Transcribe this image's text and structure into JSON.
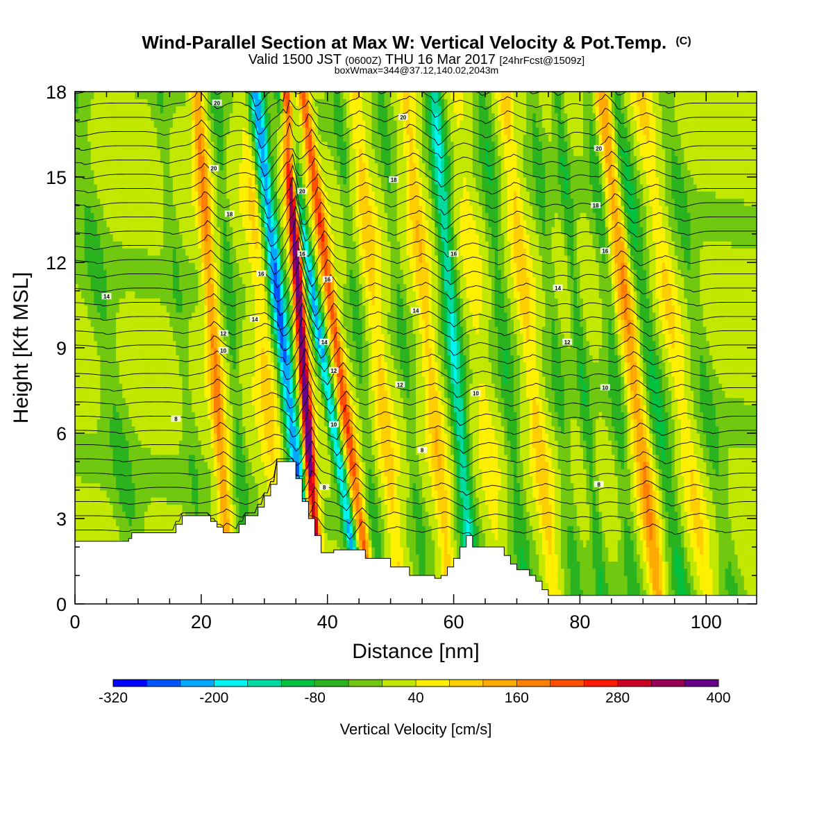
{
  "chart_data": {
    "type": "heatmap",
    "title": "Wind-Parallel Section at Max W: Vertical Velocity & Pot.Temp.",
    "title_suffix": "(C)",
    "subtitle_parts": [
      "Valid 1500 JST ",
      "(0600Z)",
      " THU 16 Mar 2017 ",
      "[24hrFcst@1509z]"
    ],
    "subtitle2": "boxWmax=344@37.12,140.02,2043m",
    "xlabel": "Distance [nm]",
    "ylabel": "Height [Kft MSL]",
    "xlim": [
      0,
      108
    ],
    "ylim": [
      0,
      18
    ],
    "x_ticks": [
      "0",
      "20",
      "40",
      "60",
      "80",
      "100"
    ],
    "x_tick_values": [
      0,
      20,
      40,
      60,
      80,
      100
    ],
    "y_ticks": [
      "0",
      "3",
      "6",
      "9",
      "12",
      "15",
      "18"
    ],
    "y_tick_values": [
      0,
      3,
      6,
      9,
      12,
      15,
      18
    ],
    "colorbar": {
      "label": "Vertical Velocity [cm/s]",
      "range": [
        -320,
        400
      ],
      "tick_labels": [
        "-320",
        "-200",
        "-80",
        "40",
        "160",
        "280",
        "400"
      ],
      "tick_values": [
        -320,
        -200,
        -80,
        40,
        160,
        280,
        400
      ],
      "colors": [
        "#0000ff",
        "#0055ff",
        "#00a8ff",
        "#00f5f0",
        "#00d9a0",
        "#00c040",
        "#2ab31e",
        "#70c810",
        "#c3e800",
        "#ffef00",
        "#ffce00",
        "#ffaa00",
        "#ff7f00",
        "#ff4f00",
        "#ff1a00",
        "#cc0022",
        "#990055",
        "#660088"
      ]
    },
    "terrain": {
      "x": [
        0,
        8.5,
        8.5,
        9,
        9,
        16,
        16,
        17,
        17,
        21.5,
        21.5,
        22.5,
        22.5,
        23.5,
        23.5,
        26,
        26,
        27,
        27,
        29,
        29,
        30,
        30,
        31,
        31,
        32,
        32,
        35,
        35,
        36,
        36,
        37,
        37,
        38,
        38,
        39,
        39,
        41,
        41,
        46,
        46,
        50,
        50,
        53,
        53,
        57,
        57,
        58,
        58,
        59,
        59,
        60,
        60,
        61,
        61,
        62,
        62,
        63,
        63,
        68,
        68,
        69,
        69,
        70,
        70,
        72,
        72,
        73,
        73,
        74,
        74,
        75,
        75,
        108
      ],
      "y": [
        2.2,
        2.2,
        2.3,
        2.3,
        2.5,
        2.5,
        2.8,
        2.8,
        3.1,
        3.1,
        2.9,
        2.9,
        2.7,
        2.7,
        2.5,
        2.5,
        2.8,
        2.8,
        3.1,
        3.1,
        3.4,
        3.4,
        3.8,
        3.8,
        4.2,
        4.2,
        5.0,
        5.0,
        4.4,
        4.4,
        3.6,
        3.6,
        3.0,
        3.0,
        2.4,
        2.4,
        1.8,
        1.8,
        1.9,
        1.9,
        1.6,
        1.6,
        1.3,
        1.3,
        1.0,
        1.0,
        0.9,
        0.9,
        1.0,
        1.0,
        1.3,
        1.3,
        1.6,
        1.6,
        2.0,
        2.0,
        2.4,
        2.4,
        2.0,
        2.0,
        1.7,
        1.7,
        1.4,
        1.4,
        1.2,
        1.2,
        1.0,
        1.0,
        0.8,
        0.8,
        0.5,
        0.5,
        0.3,
        0.3
      ]
    },
    "w_bands": [
      {
        "x": 5,
        "w": -60,
        "sigma": 2.0,
        "tilt": -0.6
      },
      {
        "x": 17,
        "w": -45,
        "sigma": 1.2,
        "tilt": -0.4
      },
      {
        "x": 22,
        "w": 150,
        "sigma": 1.0,
        "tilt": -0.3
      },
      {
        "x": 25,
        "w": -70,
        "sigma": 1.0,
        "tilt": -0.3
      },
      {
        "x": 30,
        "w": 70,
        "sigma": 1.5,
        "tilt": -0.3
      },
      {
        "x": 33,
        "w": -260,
        "sigma": 1.3,
        "tilt": -0.5
      },
      {
        "x": 36,
        "w": 390,
        "sigma": 0.85,
        "tilt": -0.3
      },
      {
        "x": 39,
        "w": -220,
        "sigma": 0.9,
        "tilt": -0.7
      },
      {
        "x": 41.5,
        "w": 210,
        "sigma": 0.9,
        "tilt": -0.6
      },
      {
        "x": 45,
        "w": -60,
        "sigma": 1.0,
        "tilt": -0.4
      },
      {
        "x": 48,
        "w": 80,
        "sigma": 1.2,
        "tilt": -0.4
      },
      {
        "x": 52,
        "w": -60,
        "sigma": 1.0,
        "tilt": -0.4
      },
      {
        "x": 56,
        "w": 90,
        "sigma": 1.2,
        "tilt": -0.4
      },
      {
        "x": 60,
        "w": -170,
        "sigma": 1.3,
        "tilt": -0.35
      },
      {
        "x": 64,
        "w": 40,
        "sigma": 1.2,
        "tilt": -0.4
      },
      {
        "x": 68,
        "w": -80,
        "sigma": 1.3,
        "tilt": -0.4
      },
      {
        "x": 72,
        "w": 80,
        "sigma": 1.2,
        "tilt": -0.45
      },
      {
        "x": 76,
        "w": -60,
        "sigma": 1.2,
        "tilt": -0.4
      },
      {
        "x": 80,
        "w": -80,
        "sigma": 1.0,
        "tilt": -0.4
      },
      {
        "x": 85,
        "w": -70,
        "sigma": 1.2,
        "tilt": -0.4
      },
      {
        "x": 88,
        "w": 140,
        "sigma": 1.3,
        "tilt": -0.5
      },
      {
        "x": 91,
        "w": -100,
        "sigma": 1.4,
        "tilt": -0.6
      },
      {
        "x": 95,
        "w": 60,
        "sigma": 1.3,
        "tilt": -0.6
      },
      {
        "x": 99,
        "w": -60,
        "sigma": 1.5,
        "tilt": -0.6
      }
    ],
    "theta_labels": [
      {
        "text": "14",
        "x": 5,
        "y": 10.8
      },
      {
        "text": "8",
        "x": 16,
        "y": 6.5
      },
      {
        "text": "10",
        "x": 23.5,
        "y": 8.9
      },
      {
        "text": "12",
        "x": 23.5,
        "y": 9.5
      },
      {
        "text": "14",
        "x": 28.5,
        "y": 10.0
      },
      {
        "text": "16",
        "x": 29.5,
        "y": 11.6
      },
      {
        "text": "18",
        "x": 24.5,
        "y": 13.7
      },
      {
        "text": "20",
        "x": 22,
        "y": 15.3
      },
      {
        "text": "20",
        "x": 22.5,
        "y": 17.6
      },
      {
        "text": "20",
        "x": 36,
        "y": 14.5
      },
      {
        "text": "16",
        "x": 36,
        "y": 12.3
      },
      {
        "text": "16",
        "x": 40,
        "y": 11.4
      },
      {
        "text": "14",
        "x": 39.5,
        "y": 9.2
      },
      {
        "text": "12",
        "x": 41,
        "y": 8.2
      },
      {
        "text": "10",
        "x": 41,
        "y": 6.3
      },
      {
        "text": "8",
        "x": 39.5,
        "y": 4.1
      },
      {
        "text": "20",
        "x": 52,
        "y": 17.1
      },
      {
        "text": "18",
        "x": 50.5,
        "y": 14.9
      },
      {
        "text": "16",
        "x": 60,
        "y": 12.3
      },
      {
        "text": "14",
        "x": 54,
        "y": 10.3
      },
      {
        "text": "12",
        "x": 51.5,
        "y": 7.7
      },
      {
        "text": "8",
        "x": 55,
        "y": 5.4
      },
      {
        "text": "10",
        "x": 63.5,
        "y": 7.4
      },
      {
        "text": "20",
        "x": 83,
        "y": 16.0
      },
      {
        "text": "18",
        "x": 82.5,
        "y": 14.0
      },
      {
        "text": "16",
        "x": 84,
        "y": 12.4
      },
      {
        "text": "14",
        "x": 76.5,
        "y": 11.1
      },
      {
        "text": "12",
        "x": 78,
        "y": 9.2
      },
      {
        "text": "10",
        "x": 84,
        "y": 7.6
      },
      {
        "text": "8",
        "x": 83,
        "y": 4.2
      }
    ]
  }
}
